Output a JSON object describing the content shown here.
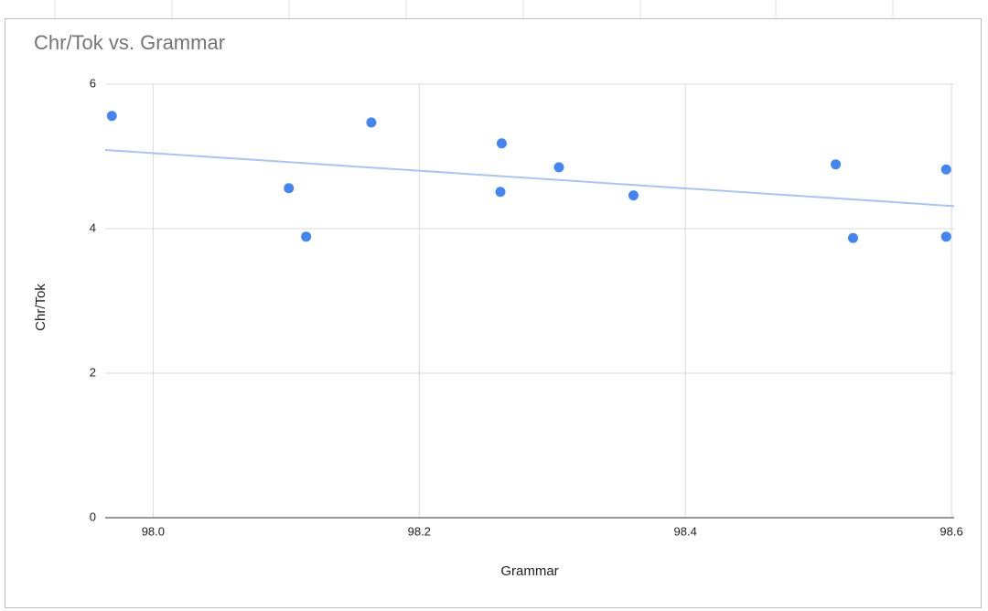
{
  "chart_data": {
    "type": "scatter",
    "title": "Chr/Tok vs. Grammar",
    "x_label": "Grammar",
    "y_label": "Chr/Tok",
    "series": [
      {
        "color": "#4285f4",
        "x": [
          97.969,
          98.102,
          98.115,
          98.164,
          98.262,
          98.261,
          98.305,
          98.361,
          98.513,
          98.526,
          98.596,
          98.596
        ],
        "values": [
          5.56,
          4.56,
          3.89,
          5.47,
          5.18,
          4.51,
          4.85,
          4.46,
          4.89,
          3.87,
          4.82,
          3.89
        ]
      }
    ],
    "xlim": [
      97.964,
      98.602
    ],
    "xticks": [
      {
        "value": 98,
        "label": "98.0"
      },
      98.2,
      98.4,
      98.6
    ],
    "ylim": [
      0,
      6
    ],
    "yticks": [
      0,
      2,
      4,
      6
    ],
    "grid": true,
    "trendline": true,
    "trendline_color": "#a8c4f7"
  }
}
